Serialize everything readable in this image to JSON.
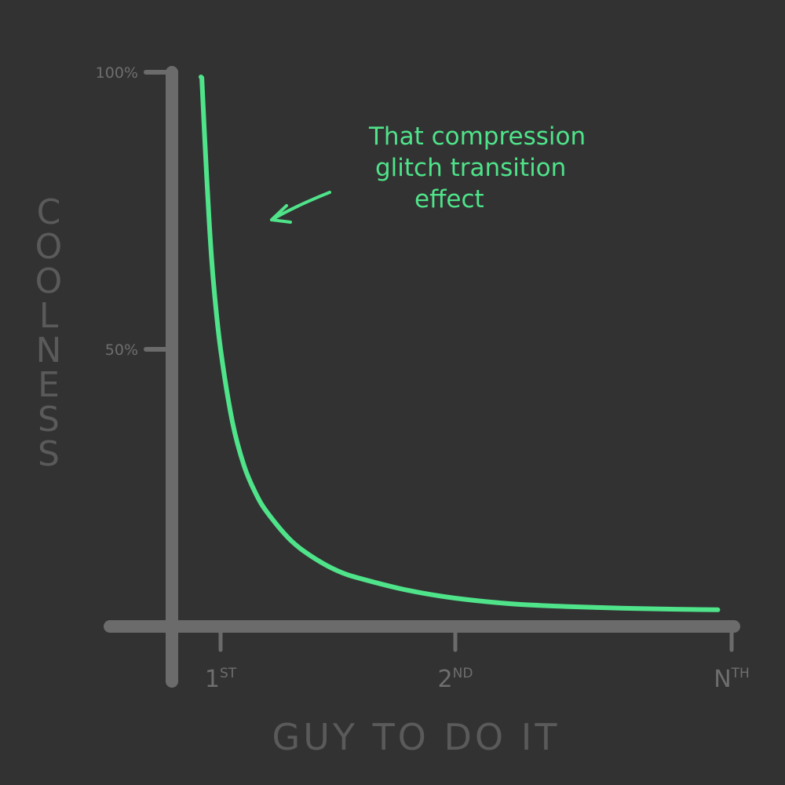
{
  "chart_data": {
    "type": "line",
    "title": "",
    "xlabel": "GUY TO DO IT",
    "ylabel": "COOLNESS",
    "ylim": [
      0,
      100
    ],
    "x_ticks": [
      {
        "value": 1,
        "base": "1",
        "suffix": "ST"
      },
      {
        "value": 2,
        "base": "2",
        "suffix": "ND"
      },
      {
        "value": 3,
        "base": "N",
        "suffix": "TH"
      }
    ],
    "y_ticks": [
      {
        "value": 100,
        "label": "100%"
      },
      {
        "value": 50,
        "label": "50%"
      }
    ],
    "grid": false,
    "legend": "none",
    "series": [
      {
        "x": [
          0.92,
          0.93,
          0.95,
          0.97,
          1.0,
          1.05,
          1.1,
          1.15,
          1.2,
          1.3,
          1.4,
          1.5,
          1.6,
          1.8,
          2.0,
          2.2,
          2.4,
          2.6,
          2.8,
          2.95
        ],
        "y": [
          99,
          90,
          74,
          62,
          50,
          37,
          29,
          24,
          20.5,
          15.5,
          12.3,
          10,
          8.6,
          6.5,
          5.1,
          4.1,
          3.6,
          3.3,
          3.1,
          3.0
        ]
      }
    ],
    "annotation": {
      "lines": [
        "That compression",
        "glitch transition",
        "effect"
      ],
      "arrow": "points left-down toward the curve"
    },
    "colors": {
      "background": "#323232",
      "axis": "#6b6b6b",
      "curve": "#4fe38a",
      "annotation": "#4fe38a"
    }
  }
}
